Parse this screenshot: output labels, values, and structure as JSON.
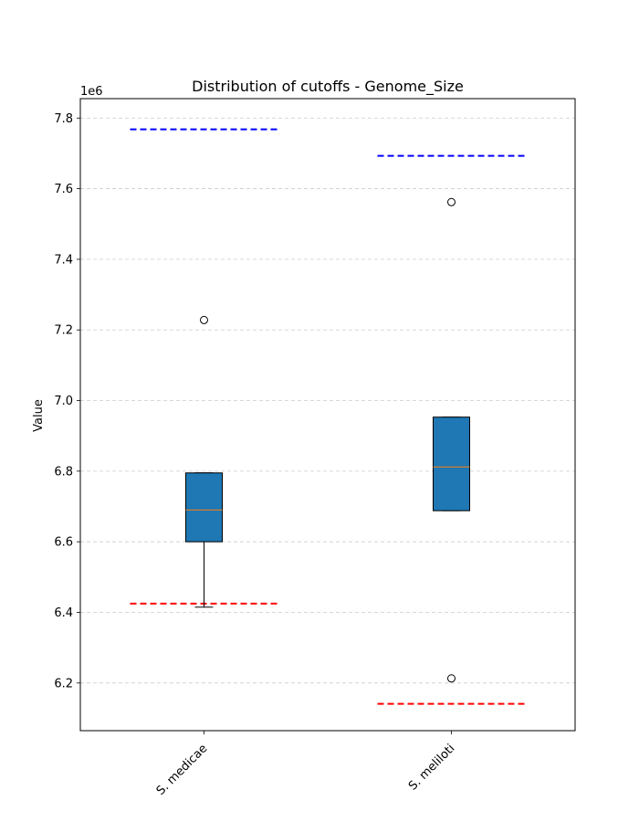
{
  "chart_data": {
    "type": "box",
    "title": "Distribution of cutoffs - Genome_Size",
    "xlabel": "",
    "ylabel": "Value",
    "y_scale_note": "1e6",
    "ylim": [
      6065000,
      7855000
    ],
    "yticks": [
      6200000,
      6400000,
      6600000,
      6800000,
      7000000,
      7200000,
      7400000,
      7600000,
      7800000
    ],
    "ytick_labels": [
      "6.2",
      "6.4",
      "6.6",
      "6.8",
      "7.0",
      "7.2",
      "7.4",
      "7.6",
      "7.8"
    ],
    "grid": "y dashed",
    "categories": [
      "S. medicae",
      "S. meliloti"
    ],
    "box_color": "#1f77b4",
    "median_color": "#ff7f0e",
    "upper_cutoff_color": "#0000ff",
    "lower_cutoff_color": "#ff0000",
    "boxes": [
      {
        "category": "S. medicae",
        "whisker_low": 6415000,
        "q1": 6600000,
        "median": 6690000,
        "q3": 6795000,
        "whisker_high": 6795000,
        "outliers": [
          7228000
        ],
        "upper_cutoff": 7768000,
        "lower_cutoff": 6425000
      },
      {
        "category": "S. meliloti",
        "whisker_low": 6688000,
        "q1": 6688000,
        "median": 6812000,
        "q3": 6953000,
        "whisker_high": 6953000,
        "outliers": [
          7562000,
          6213000
        ],
        "upper_cutoff": 7693000,
        "lower_cutoff": 6141000
      }
    ]
  }
}
